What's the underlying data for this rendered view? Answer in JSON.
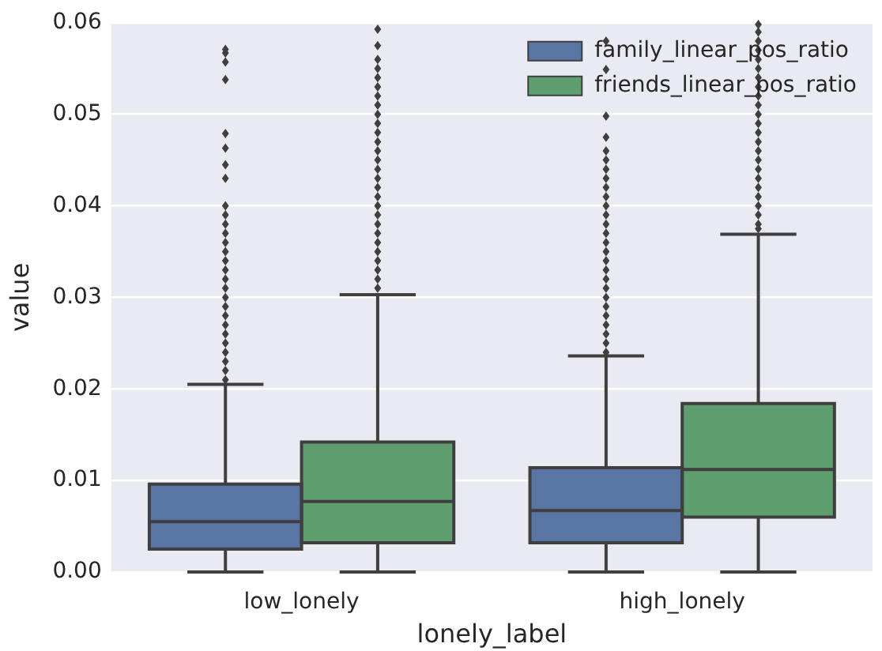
{
  "chart_data": {
    "type": "box",
    "xlabel": "lonely_label",
    "ylabel": "value",
    "categories": [
      "low_lonely",
      "high_lonely"
    ],
    "series": [
      {
        "name": "family_linear_pos_ratio",
        "color": "#5875a4",
        "boxes": [
          {
            "low": 0,
            "q1": 0.0025,
            "median": 0.0055,
            "q3": 0.0096,
            "high": 0.0205,
            "outliers": [
              0.021,
              0.022,
              0.023,
              0.024,
              0.025,
              0.026,
              0.027,
              0.028,
              0.029,
              0.03,
              0.031,
              0.032,
              0.033,
              0.034,
              0.035,
              0.036,
              0.037,
              0.038,
              0.039,
              0.04,
              0.043,
              0.0445,
              0.0463,
              0.0479,
              0.0538,
              0.0557,
              0.0567,
              0.0571
            ]
          },
          {
            "low": 0,
            "q1": 0.0032,
            "median": 0.0067,
            "q3": 0.0114,
            "high": 0.0236,
            "outliers": [
              0.024,
              0.025,
              0.026,
              0.027,
              0.028,
              0.029,
              0.03,
              0.031,
              0.032,
              0.033,
              0.034,
              0.035,
              0.036,
              0.037,
              0.038,
              0.039,
              0.04,
              0.041,
              0.042,
              0.043,
              0.044,
              0.045,
              0.046,
              0.0475,
              0.0498,
              0.0549,
              0.058
            ]
          }
        ]
      },
      {
        "name": "friends_linear_pos_ratio",
        "color": "#5f9e6e",
        "boxes": [
          {
            "low": 0,
            "q1": 0.0032,
            "median": 0.0077,
            "q3": 0.0142,
            "high": 0.0303,
            "outliers": [
              0.031,
              0.032,
              0.033,
              0.034,
              0.035,
              0.036,
              0.037,
              0.038,
              0.039,
              0.04,
              0.041,
              0.042,
              0.043,
              0.044,
              0.045,
              0.046,
              0.047,
              0.048,
              0.049,
              0.05,
              0.051,
              0.052,
              0.053,
              0.054,
              0.055,
              0.056,
              0.0575,
              0.0593
            ]
          },
          {
            "low": 0,
            "q1": 0.006,
            "median": 0.0112,
            "q3": 0.0184,
            "high": 0.0369,
            "outliers": [
              0.0375,
              0.038,
              0.039,
              0.04,
              0.041,
              0.042,
              0.043,
              0.044,
              0.045,
              0.046,
              0.047,
              0.048,
              0.049,
              0.05,
              0.051,
              0.052,
              0.053,
              0.054,
              0.055,
              0.056,
              0.057,
              0.058,
              0.059,
              0.0598
            ]
          }
        ]
      }
    ],
    "ylim": [
      0,
      0.06
    ],
    "yticks": [
      {
        "value": 0,
        "label": "0.00"
      },
      {
        "value": 0.01,
        "label": "0.01"
      },
      {
        "value": 0.02,
        "label": "0.02"
      },
      {
        "value": 0.03,
        "label": "0.03"
      },
      {
        "value": 0.04,
        "label": "0.04"
      },
      {
        "value": 0.05,
        "label": "0.05"
      },
      {
        "value": 0.06,
        "label": "0.06"
      }
    ],
    "grid": "y",
    "legend": "top right"
  }
}
